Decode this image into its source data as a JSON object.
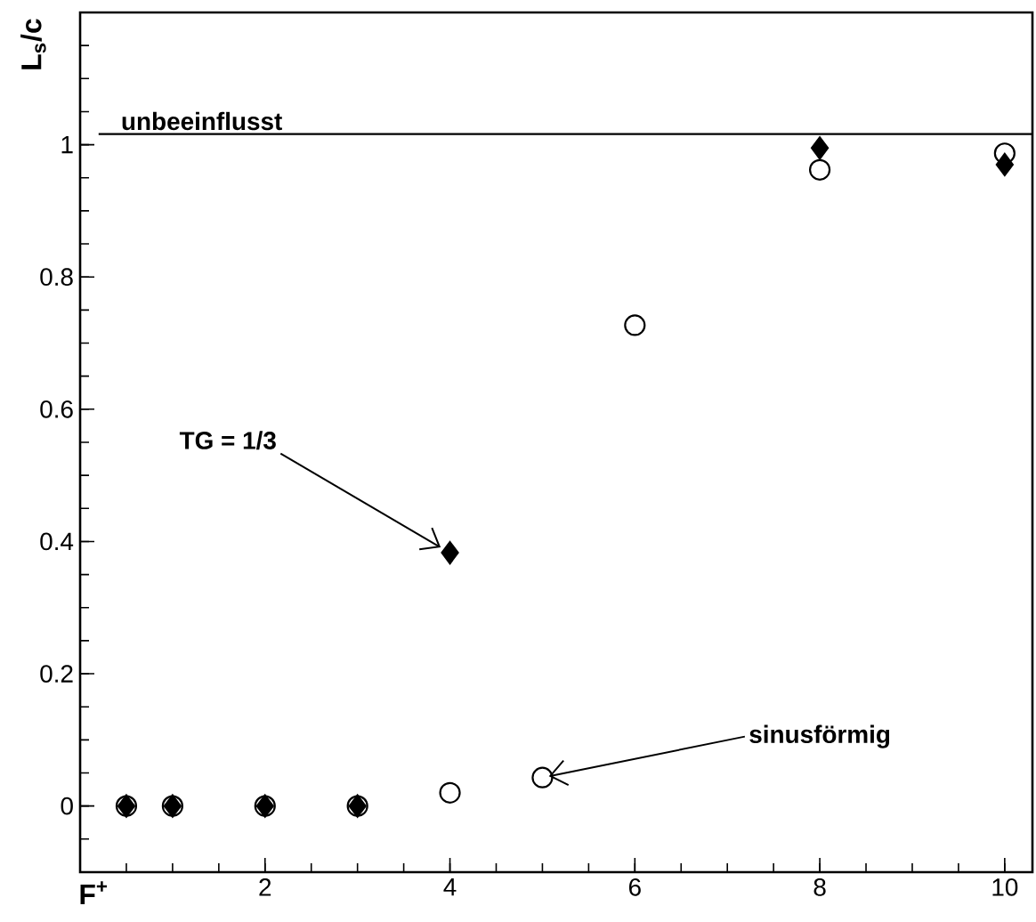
{
  "chart_data": {
    "type": "scatter",
    "xlabel": "F$^{+}$",
    "ylabel": "L$_{s}$/c",
    "xlim": [
      0,
      10.3
    ],
    "ylim": [
      -0.1,
      1.2
    ],
    "xticks": [
      2,
      4,
      6,
      8,
      10
    ],
    "yticks": [
      0,
      0.2,
      0.4,
      0.6,
      0.8,
      1
    ],
    "series": [
      {
        "marker": "circle",
        "color": "#000000",
        "x": [
          0.5,
          1,
          2,
          3,
          4,
          5,
          6,
          8,
          10
        ],
        "values": [
          0,
          0,
          0,
          0,
          0.02,
          0.043,
          0.727,
          0.962,
          0.987
        ]
      },
      {
        "marker": "diamond",
        "color": "#000000",
        "x": [
          0.5,
          1,
          2,
          3,
          4,
          8,
          10
        ],
        "values": [
          0,
          0,
          0,
          0,
          0.383,
          0.995,
          0.97
        ]
      }
    ],
    "ref_lines": [
      {
        "axis": "y",
        "value": 1.016,
        "label": "unbeeinflusst",
        "color": "#000000"
      }
    ],
    "annotations": [
      {
        "text": "TG = 1/3",
        "x": 4,
        "y": 0.383
      },
      {
        "text": "sinusförmig",
        "x": 5,
        "y": 0.043
      }
    ]
  }
}
